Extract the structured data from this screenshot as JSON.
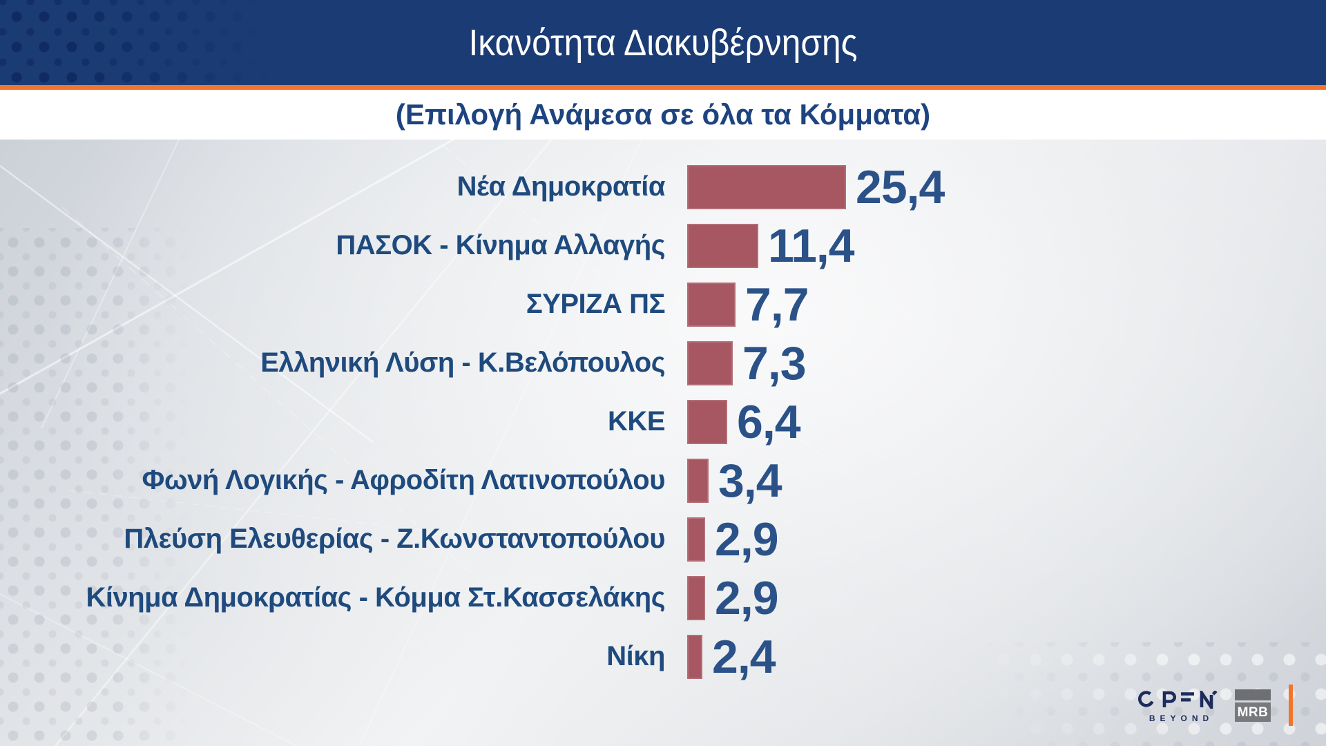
{
  "header": {
    "title": "Ικανότητα Διακυβέρνησης",
    "subtitle": "(Επιλογή Ανάμεσα σε όλα τα Κόμματα)"
  },
  "chart_data": {
    "type": "bar",
    "orientation": "horizontal",
    "title": "Ικανότητα Διακυβέρνησης",
    "subtitle": "(Επιλογή Ανάμεσα σε όλα τα Κόμματα)",
    "categories": [
      "Νέα Δημοκρατία",
      "ΠΑΣΟΚ - Κίνημα Αλλαγής",
      "ΣΥΡΙΖΑ ΠΣ",
      "Ελληνική Λύση - Κ.Βελόπουλος",
      "ΚΚΕ",
      "Φωνή Λογικής - Αφροδίτη Λατινοπούλου",
      "Πλεύση Ελευθερίας - Ζ.Κωνσταντοπούλου",
      "Κίνημα Δημοκρατίας - Κόμμα Στ.Κασσελάκης",
      "Νίκη"
    ],
    "values": [
      25.4,
      11.4,
      7.7,
      7.3,
      6.4,
      3.4,
      2.9,
      2.9,
      2.4
    ],
    "value_labels": [
      "25,4",
      "11,4",
      "7,7",
      "7,3",
      "6,4",
      "3,4",
      "2,9",
      "2,9",
      "2,4"
    ],
    "xlim": [
      0,
      27
    ],
    "grid": false,
    "legend": false,
    "bar_color": "#a65761",
    "label_color": "#1e4a7e",
    "value_color": "#2b5288"
  },
  "footer": {
    "open": {
      "text": "OPEN",
      "subtext": "BEYOND"
    },
    "mrb": {
      "text": "MRB"
    }
  },
  "colors": {
    "header_blue": "#1b3b74",
    "accent_orange": "#f2752b",
    "bar_red": "#a65761",
    "text_blue": "#1d4480"
  }
}
